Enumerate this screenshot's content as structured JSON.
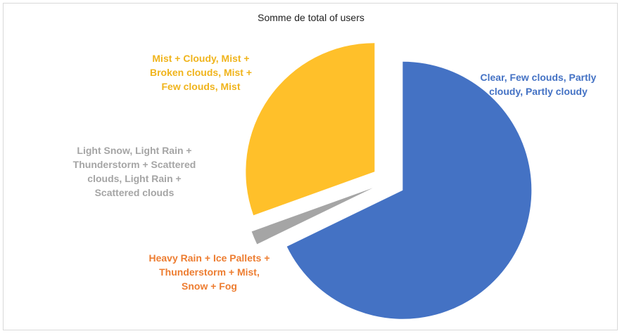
{
  "chart_data": {
    "type": "pie",
    "title": "Somme de total of users",
    "exploded": true,
    "slices": [
      {
        "label": "Clear, Few clouds, Partly cloudy, Partly cloudy",
        "value": 67.8,
        "color": "#4472c4"
      },
      {
        "label": "Heavy Rain + Ice Pallets + Thunderstorm + Mist, Snow + Fog",
        "value": 0.0,
        "color": "#ed7d31"
      },
      {
        "label": "Light Snow, Light Rain + Thunderstorm + Scattered clouds, Light Rain + Scattered clouds",
        "value": 1.7,
        "color": "#a5a5a5"
      },
      {
        "label": "Mist + Cloudy, Mist + Broken clouds, Mist + Few clouds, Mist",
        "value": 30.5,
        "color": "#ffc02a"
      }
    ]
  }
}
